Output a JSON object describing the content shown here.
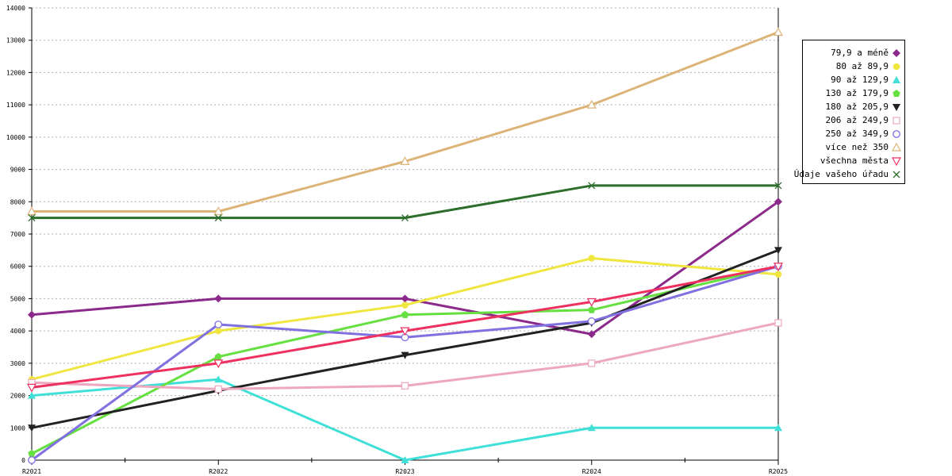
{
  "chart_data": {
    "type": "line",
    "title": "",
    "xlabel": "",
    "ylabel": "",
    "categories": [
      "R2021",
      "R2022",
      "R2023",
      "R2024",
      "R2025"
    ],
    "ylim": [
      0,
      14000
    ],
    "yticks": [
      "0",
      "1000",
      "2000",
      "3000",
      "4000",
      "5000",
      "6000",
      "7000",
      "8000",
      "9000",
      "10000",
      "11000",
      "12000",
      "13000",
      "14000"
    ],
    "grid": "horizontal dotted",
    "legend_position": "right",
    "series": [
      {
        "name": "79,9 a méně",
        "color": "#8b2a8b",
        "marker": "diamond",
        "values": [
          4500,
          5000,
          5000,
          3900,
          8000
        ]
      },
      {
        "name": "80 až 89,9",
        "color": "#f0e640",
        "marker": "circle-filled",
        "values": [
          2500,
          4000,
          4800,
          6250,
          5750
        ]
      },
      {
        "name": "90 až 129,9",
        "color": "#40e0d8",
        "marker": "triangle-up-filled",
        "values": [
          2000,
          2500,
          0,
          1000,
          1000
        ]
      },
      {
        "name": "130 až 179,9",
        "color": "#66e040",
        "marker": "pentagon-filled",
        "values": [
          200,
          3200,
          4500,
          4650,
          6000
        ]
      },
      {
        "name": "180 až 205,9",
        "color": "#222222",
        "marker": "triangle-down-filled",
        "values": [
          1000,
          2150,
          3250,
          4250,
          6500
        ]
      },
      {
        "name": "206 až 249,9",
        "color": "#eda8c0",
        "marker": "square-open",
        "values": [
          2400,
          2200,
          2300,
          3000,
          4250
        ]
      },
      {
        "name": "250 až 349,9",
        "color": "#8070e0",
        "marker": "circle-open",
        "values": [
          0,
          4200,
          3800,
          4300,
          6000
        ]
      },
      {
        "name": "více než 350",
        "color": "#dcb478",
        "marker": "triangle-up-open",
        "values": [
          7700,
          7700,
          9250,
          11000,
          13250
        ]
      },
      {
        "name": "všechna města",
        "color": "#ee3060",
        "marker": "triangle-down-open",
        "values": [
          2250,
          3000,
          4000,
          4900,
          6000
        ]
      },
      {
        "name": "Údaje vašeho úřadu",
        "color": "#2d6e2d",
        "marker": "x",
        "values": [
          7500,
          7500,
          7500,
          8500,
          8500
        ]
      }
    ]
  }
}
